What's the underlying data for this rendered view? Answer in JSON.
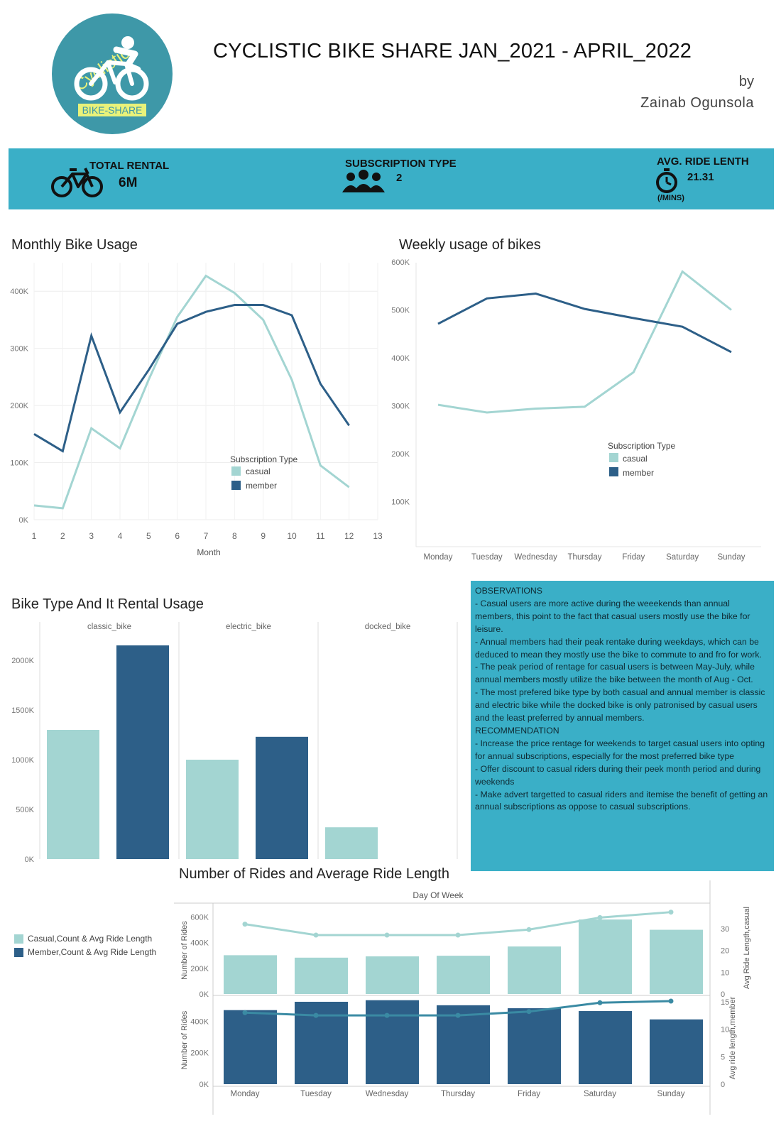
{
  "header": {
    "title": "CYCLISTIC BIKE SHARE JAN_2021 - APRIL_2022",
    "by": "by",
    "author": "Zainab Ogunsola",
    "logo_text": "Cyclistic",
    "logo_badge": "BIKE-SHARE"
  },
  "colors": {
    "casual": "#a3d5d2",
    "member": "#2d5f88",
    "band": "#3aafc7",
    "logo": "#3e98a8"
  },
  "kpis": {
    "total_rental": {
      "label": "TOTAL RENTAL",
      "value": "6M",
      "icon": "bicycle-icon"
    },
    "subscription_type": {
      "label": "SUBSCRIPTION TYPE",
      "value": "2",
      "icon": "people-group-icon"
    },
    "avg_ride": {
      "label": "AVG. RIDE LENTH",
      "value": "21.31",
      "unit": "(/MINS)",
      "icon": "stopwatch-icon"
    }
  },
  "chart_data": [
    {
      "id": "monthly",
      "type": "line",
      "title": "Monthly Bike Usage",
      "xlabel": "Month",
      "x": [
        1,
        2,
        3,
        4,
        5,
        6,
        7,
        8,
        9,
        10,
        11,
        12
      ],
      "x_ticks": [
        "1",
        "2",
        "3",
        "4",
        "5",
        "6",
        "7",
        "8",
        "9",
        "10",
        "11",
        "12",
        "13"
      ],
      "y_ticks": [
        "0K",
        "100K",
        "200K",
        "300K",
        "400K"
      ],
      "ylim": [
        0,
        450000
      ],
      "legend_title": "Subscription Type",
      "series": [
        {
          "name": "casual",
          "values": [
            25000,
            20000,
            160000,
            125000,
            245000,
            355000,
            427000,
            397000,
            350000,
            245000,
            95000,
            57000
          ]
        },
        {
          "name": "member",
          "values": [
            150000,
            120000,
            322000,
            188000,
            262000,
            343000,
            364000,
            376000,
            376000,
            358000,
            238000,
            165000
          ]
        }
      ]
    },
    {
      "id": "weekly",
      "type": "line",
      "title": "Weekly usage of bikes",
      "categories": [
        "Monday",
        "Tuesday",
        "Wednesday",
        "Thursday",
        "Friday",
        "Saturday",
        "Sunday"
      ],
      "y_ticks": [
        "100K",
        "200K",
        "300K",
        "400K",
        "500K",
        "600K"
      ],
      "ylim": [
        0,
        600000
      ],
      "legend_title": "Subscription Type",
      "series": [
        {
          "name": "casual",
          "values": [
            302000,
            286000,
            294000,
            298000,
            370000,
            580000,
            500000
          ]
        },
        {
          "name": "member",
          "values": [
            471000,
            524000,
            534000,
            502000,
            483000,
            465000,
            412000
          ]
        }
      ]
    },
    {
      "id": "biketype",
      "type": "bar",
      "title": "Bike Type And It Rental Usage",
      "panels": [
        "classic_bike",
        "electric_bike",
        "docked_bike"
      ],
      "y_ticks": [
        "0K",
        "500K",
        "1000K",
        "1500K",
        "2000K"
      ],
      "ylim": [
        0,
        2350000
      ],
      "series": [
        {
          "name": "casual",
          "values": [
            1300000,
            1000000,
            320000
          ]
        },
        {
          "name": "member",
          "values": [
            2150000,
            1230000,
            null
          ]
        }
      ]
    },
    {
      "id": "rides",
      "type": "bar",
      "title": "Number of Rides and Average Ride Length",
      "header": "Day Of Week",
      "categories": [
        "Monday",
        "Tuesday",
        "Wednesday",
        "Thursday",
        "Friday",
        "Saturday",
        "Sunday"
      ],
      "legend": [
        "Casual,Count & Avg Ride Length",
        "Member,Count & Avg Ride Length"
      ],
      "y_left_label": "Number of Rides",
      "top": {
        "y_ticks": [
          "0K",
          "200K",
          "400K",
          "600K"
        ],
        "ylim": [
          0,
          680000
        ],
        "y2_label": "Avg Ride Length,casual",
        "y2_ticks": [
          "0",
          "10",
          "20",
          "30"
        ],
        "y2lim": [
          0,
          40
        ],
        "counts": [
          302000,
          283000,
          293000,
          298000,
          370000,
          580000,
          500000
        ],
        "avg_len": [
          32,
          27,
          27,
          27,
          29.5,
          35,
          37.5
        ]
      },
      "bottom": {
        "y_ticks": [
          "0K",
          "200K",
          "400K"
        ],
        "ylim": [
          0,
          560000
        ],
        "y2_label": "Avg ride length,member",
        "y2_ticks": [
          "0",
          "5",
          "10",
          "15"
        ],
        "y2lim": [
          0,
          16
        ],
        "counts": [
          471000,
          524000,
          534000,
          502000,
          483000,
          465000,
          412000
        ],
        "avg_len": [
          13,
          12.5,
          12.5,
          12.5,
          13.2,
          14.8,
          15.1
        ]
      }
    }
  ],
  "observations": [
    "OBSERVATIONS",
    "- Casual users are more active during the weeekends than annual members, this point to the fact that casual users mostly use the bike for leisure.",
    "- Annual members had their peak rentake during weekdays, which can be deduced to mean they mostly use the bike to commute to and fro for work.",
    "- The peak period of rentage for casual users is between May-July, while annual members mostly utilize the bike between the month of Aug - Oct.",
    "- The most prefered bike type by both casual and annual member is classic and electric bike while the docked bike is only patronised by casual users and the least preferred by annual members.",
    "RECOMMENDATION",
    "- Increase the price rentage for weekends to target casual users into opting for annual subscriptions, especially for the most preferred  bike type",
    "- Offer discount to casual riders during their peek month period and during weekends",
    "- Make advert targetted to casual riders and itemise the benefit of getting an annual subscriptions as oppose to casual subscriptions."
  ]
}
